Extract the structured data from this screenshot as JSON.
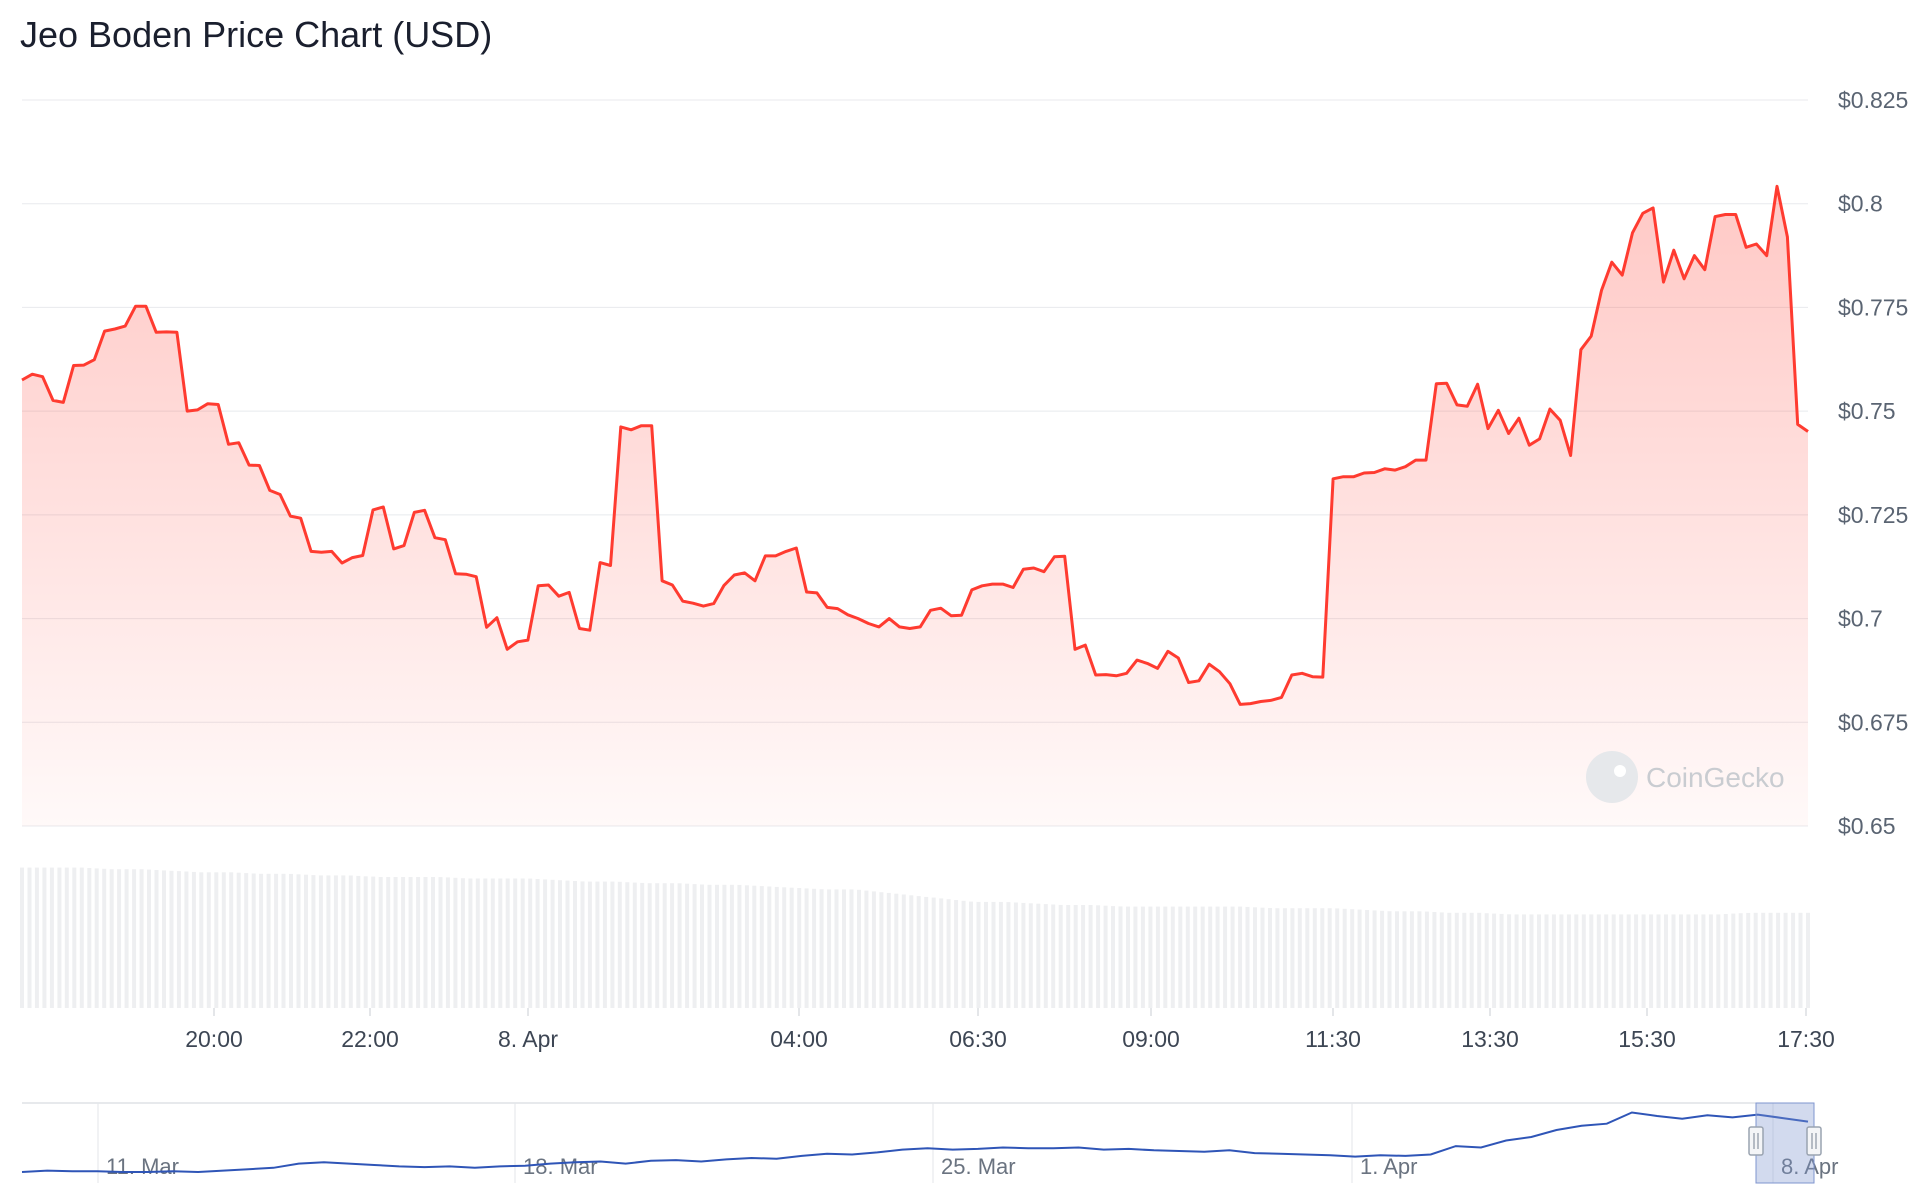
{
  "chart_data": {
    "type": "area",
    "title": "Jeo Boden Price Chart (USD)",
    "watermark": "CoinGecko",
    "ylim": [
      0.65,
      0.825
    ],
    "y_tick_labels": [
      "$0.825",
      "$0.8",
      "$0.775",
      "$0.75",
      "$0.725",
      "$0.7",
      "$0.675",
      "$0.65"
    ],
    "x_tick_labels": [
      "20:00",
      "22:00",
      "8. Apr",
      "04:00",
      "06:30",
      "09:00",
      "11:30",
      "13:30",
      "15:30",
      "17:30"
    ],
    "series": [
      {
        "values": [
          0.7575,
          0.7589,
          0.7583,
          0.7526,
          0.7521,
          0.761,
          0.7611,
          0.7624,
          0.7693,
          0.7698,
          0.7705,
          0.7753,
          0.7753,
          0.769,
          0.7691,
          0.769,
          0.75,
          0.7503,
          0.7518,
          0.7516,
          0.742,
          0.7424,
          0.737,
          0.7369,
          0.7309,
          0.7299,
          0.7247,
          0.7242,
          0.7162,
          0.716,
          0.7162,
          0.7134,
          0.7147,
          0.7152,
          0.7262,
          0.7269,
          0.7168,
          0.7176,
          0.7256,
          0.7261,
          0.7195,
          0.719,
          0.7108,
          0.7107,
          0.7101,
          0.6979,
          0.7002,
          0.6926,
          0.6944,
          0.6948,
          0.7079,
          0.7081,
          0.7054,
          0.7063,
          0.6976,
          0.6972,
          0.7135,
          0.7128,
          0.7462,
          0.7455,
          0.7465,
          0.7465,
          0.7091,
          0.7081,
          0.7042,
          0.7037,
          0.703,
          0.7036,
          0.708,
          0.7105,
          0.711,
          0.7091,
          0.7151,
          0.7151,
          0.7162,
          0.717,
          0.7064,
          0.7062,
          0.7027,
          0.7024,
          0.7009,
          0.7,
          0.6988,
          0.698,
          0.7,
          0.698,
          0.6976,
          0.698,
          0.702,
          0.7025,
          0.7007,
          0.7008,
          0.7069,
          0.7079,
          0.7083,
          0.7083,
          0.7075,
          0.7119,
          0.7122,
          0.7113,
          0.7149,
          0.715,
          0.6926,
          0.6936,
          0.6864,
          0.6865,
          0.6862,
          0.6868,
          0.69,
          0.6892,
          0.688,
          0.6921,
          0.6905,
          0.6846,
          0.685,
          0.689,
          0.6872,
          0.6843,
          0.6793,
          0.6795,
          0.68,
          0.6803,
          0.681,
          0.6864,
          0.6868,
          0.686,
          0.6859,
          0.7337,
          0.7342,
          0.7342,
          0.7351,
          0.7352,
          0.7361,
          0.7358,
          0.7366,
          0.7382,
          0.7382,
          0.7566,
          0.7567,
          0.7515,
          0.7512,
          0.7565,
          0.7458,
          0.7502,
          0.7446,
          0.7483,
          0.7418,
          0.7433,
          0.7505,
          0.7478,
          0.7393,
          0.7648,
          0.7681,
          0.7791,
          0.7859,
          0.7828,
          0.793,
          0.7977,
          0.799,
          0.7811,
          0.7888,
          0.7819,
          0.7875,
          0.7841,
          0.7969,
          0.7974,
          0.7974,
          0.7895,
          0.7903,
          0.7875,
          0.8042,
          0.792,
          0.7468,
          0.7451
        ]
      }
    ],
    "volume_profile": [
      0.9,
      0.9,
      0.9,
      0.89,
      0.89,
      0.88,
      0.87,
      0.87,
      0.86,
      0.86,
      0.85,
      0.85,
      0.84,
      0.84,
      0.84,
      0.83,
      0.83,
      0.83,
      0.82,
      0.81,
      0.81,
      0.8,
      0.8,
      0.79,
      0.79,
      0.78,
      0.77,
      0.76,
      0.76,
      0.74,
      0.72,
      0.7,
      0.68,
      0.68,
      0.67,
      0.66,
      0.66,
      0.65,
      0.65,
      0.65,
      0.65,
      0.65,
      0.64,
      0.64,
      0.64,
      0.63,
      0.62,
      0.62,
      0.61,
      0.61,
      0.6,
      0.6,
      0.6,
      0.6,
      0.6,
      0.6,
      0.6,
      0.6,
      0.61,
      0.61,
      0.61
    ],
    "navigator": {
      "tick_labels": [
        "11. Mar",
        "18. Mar",
        "25. Mar",
        "1. Apr",
        "8. Apr"
      ],
      "values": [
        0.1,
        0.12,
        0.11,
        0.11,
        0.1,
        0.1,
        0.11,
        0.1,
        0.12,
        0.14,
        0.16,
        0.22,
        0.24,
        0.22,
        0.2,
        0.18,
        0.17,
        0.18,
        0.16,
        0.18,
        0.19,
        0.22,
        0.24,
        0.25,
        0.22,
        0.26,
        0.27,
        0.25,
        0.28,
        0.3,
        0.29,
        0.33,
        0.36,
        0.35,
        0.38,
        0.42,
        0.44,
        0.42,
        0.43,
        0.45,
        0.44,
        0.44,
        0.45,
        0.42,
        0.43,
        0.41,
        0.4,
        0.39,
        0.41,
        0.37,
        0.36,
        0.35,
        0.34,
        0.32,
        0.34,
        0.33,
        0.35,
        0.47,
        0.45,
        0.55,
        0.6,
        0.7,
        0.76,
        0.79,
        0.95,
        0.9,
        0.86,
        0.91,
        0.88,
        0.92,
        0.87,
        0.82
      ],
      "selected_range": "8. Apr"
    }
  }
}
